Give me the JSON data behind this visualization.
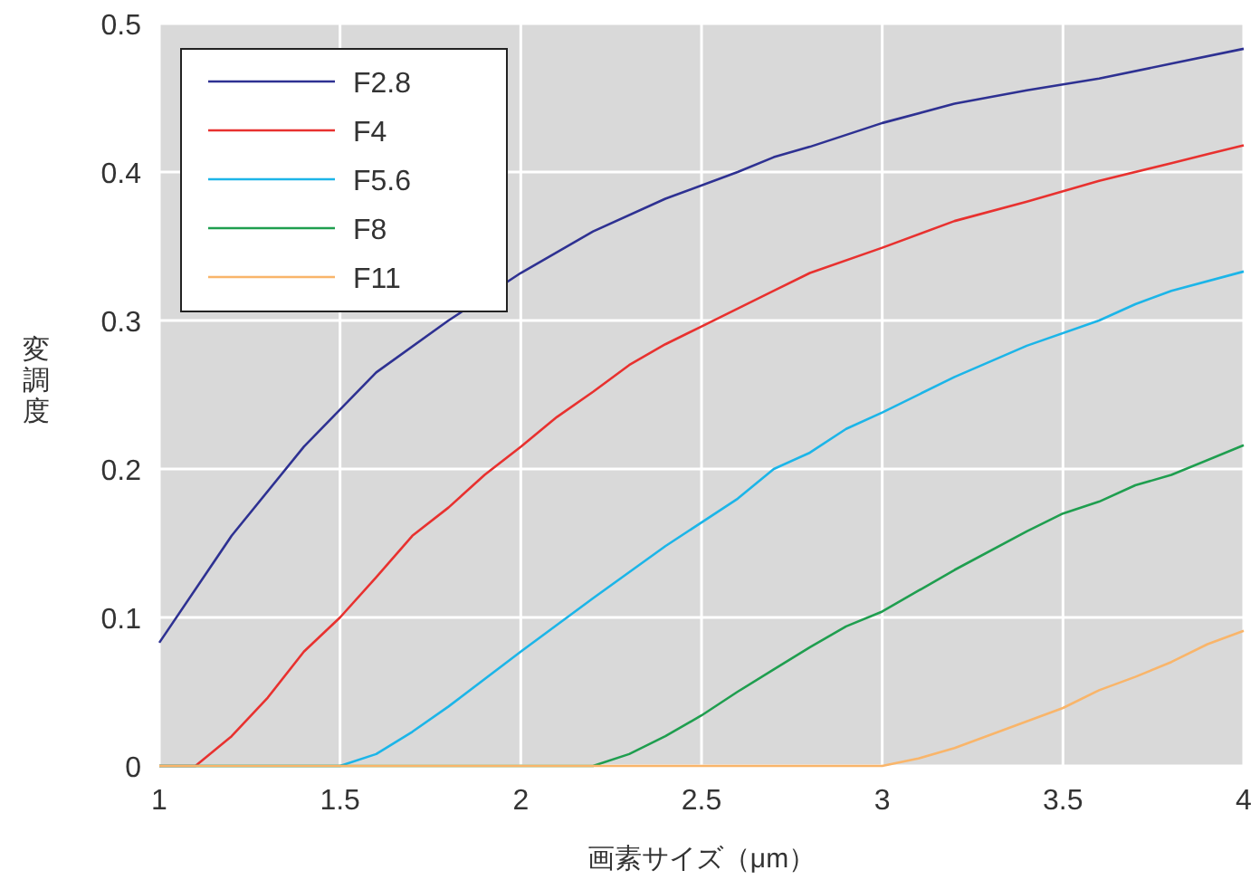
{
  "chart_data": {
    "type": "line",
    "xlabel": "画素サイズ（μm）",
    "ylabel": "変調度",
    "xlim": [
      1,
      4
    ],
    "ylim": [
      0,
      0.5
    ],
    "xticks": [
      1,
      1.5,
      2,
      2.5,
      3,
      3.5,
      4
    ],
    "yticks": [
      0,
      0.1,
      0.2,
      0.3,
      0.4,
      0.5
    ],
    "grid": true,
    "legend": "top left",
    "marker": "none",
    "line_style": "solid",
    "series": [
      {
        "name": "F2.8",
        "color": "#2e3192",
        "x": [
          1,
          1.2,
          1.4,
          1.6,
          1.8,
          2,
          2.2,
          2.4,
          2.6,
          2.7,
          2.8,
          3,
          3.2,
          3.4,
          3.6,
          3.8,
          4
        ],
        "values": [
          0.083,
          0.155,
          0.215,
          0.265,
          0.3,
          0.332,
          0.36,
          0.382,
          0.4,
          0.41,
          0.417,
          0.433,
          0.446,
          0.455,
          0.463,
          0.473,
          0.483
        ]
      },
      {
        "name": "F4",
        "color": "#e8312f",
        "x": [
          1,
          1.1,
          1.2,
          1.3,
          1.4,
          1.5,
          1.6,
          1.7,
          1.8,
          1.9,
          2,
          2.1,
          2.2,
          2.3,
          2.4,
          2.5,
          2.6,
          2.7,
          2.8,
          3,
          3.2,
          3.4,
          3.6,
          3.8,
          3.9,
          4
        ],
        "values": [
          0,
          0,
          0.02,
          0.046,
          0.077,
          0.1,
          0.127,
          0.155,
          0.174,
          0.196,
          0.215,
          0.235,
          0.252,
          0.27,
          0.284,
          0.296,
          0.308,
          0.32,
          0.332,
          0.349,
          0.367,
          0.38,
          0.394,
          0.406,
          0.412,
          0.418
        ]
      },
      {
        "name": "F5.6",
        "color": "#1cb5e8",
        "x": [
          1,
          1.5,
          1.6,
          1.7,
          1.8,
          2,
          2.2,
          2.4,
          2.6,
          2.7,
          2.8,
          2.9,
          3,
          3.2,
          3.4,
          3.6,
          3.7,
          3.8,
          4
        ],
        "values": [
          0,
          0,
          0.008,
          0.023,
          0.04,
          0.077,
          0.113,
          0.148,
          0.18,
          0.2,
          0.211,
          0.227,
          0.238,
          0.262,
          0.283,
          0.3,
          0.311,
          0.32,
          0.333
        ]
      },
      {
        "name": "F8",
        "color": "#1f9e4f",
        "x": [
          1,
          2.2,
          2.3,
          2.4,
          2.5,
          2.6,
          2.7,
          2.8,
          2.9,
          3,
          3.1,
          3.2,
          3.4,
          3.5,
          3.6,
          3.7,
          3.8,
          4
        ],
        "values": [
          0,
          0,
          0.008,
          0.02,
          0.034,
          0.05,
          0.065,
          0.08,
          0.094,
          0.104,
          0.118,
          0.132,
          0.158,
          0.17,
          0.178,
          0.189,
          0.196,
          0.216
        ]
      },
      {
        "name": "F11",
        "color": "#f9b56a",
        "x": [
          1,
          3,
          3.1,
          3.2,
          3.3,
          3.4,
          3.5,
          3.6,
          3.7,
          3.8,
          3.9,
          4
        ],
        "values": [
          0,
          0,
          0.005,
          0.012,
          0.021,
          0.03,
          0.039,
          0.051,
          0.06,
          0.07,
          0.082,
          0.091
        ]
      }
    ]
  }
}
